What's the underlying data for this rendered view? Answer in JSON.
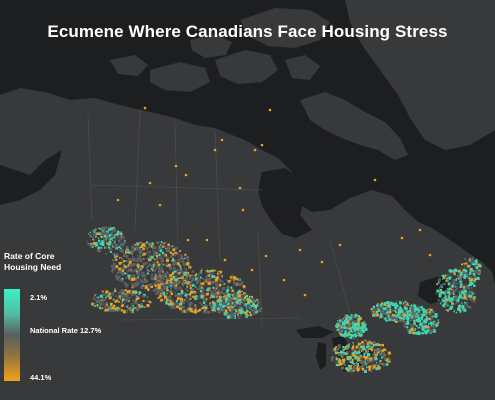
{
  "title": "Ecumene Where Canadians Face Housing Stress",
  "legend": {
    "title": "Rate of Core Housing Need",
    "high_label": "2.1%",
    "mid_label": "National Rate 12.7%",
    "low_label": "44.1%",
    "colors": {
      "low_need": "#3ef0c6",
      "national": "#5b5e60",
      "high_need": "#f2a31c"
    }
  },
  "colors": {
    "background": "#1d1e20",
    "land": "#38393b",
    "water": "#1d1e20",
    "ecumene_teal": "#3fd6b3",
    "ecumene_orange": "#f0a020",
    "ecumene_grey": "#5d6163"
  }
}
